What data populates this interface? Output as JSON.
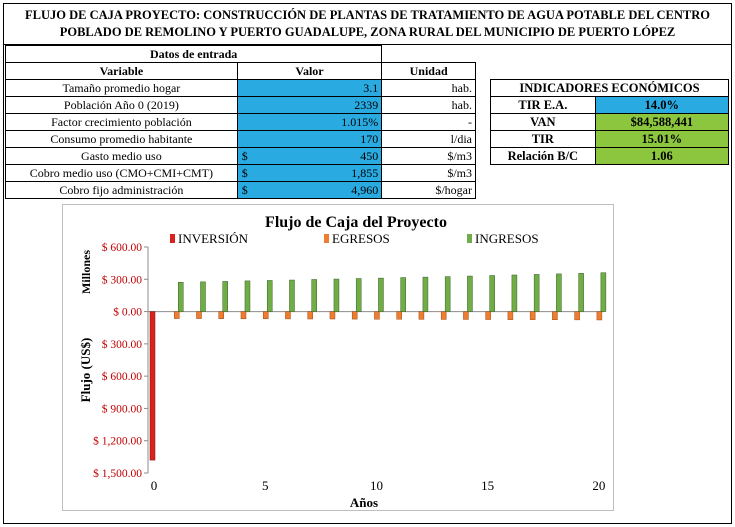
{
  "header": {
    "title_line1": "FLUJO DE CAJA PROYECTO: CONSTRUCCIÓN DE PLANTAS DE TRATAMIENTO DE AGUA POTABLE DEL CENTRO",
    "title_line2": "POBLADO DE REMOLINO Y PUERTO GUADALUPE, ZONA RURAL DEL MUNICIPIO DE PUERTO LÓPEZ"
  },
  "inputs": {
    "section_title": "Datos de entrada",
    "col_variable": "Variable",
    "col_valor": "Valor",
    "col_unidad": "Unidad",
    "rows": [
      {
        "variable": "Tamaño promedio hogar",
        "currency": "",
        "valor": "3.1",
        "unidad": "hab."
      },
      {
        "variable": "Población Año 0 (2019)",
        "currency": "",
        "valor": "2339",
        "unidad": "hab."
      },
      {
        "variable": "Factor crecimiento población",
        "currency": "",
        "valor": "1.015%",
        "unidad": "-"
      },
      {
        "variable": "Consumo promedio habitante",
        "currency": "",
        "valor": "170",
        "unidad": "l/dia"
      },
      {
        "variable": "Gasto medio uso",
        "currency": "$",
        "valor": "450",
        "unidad": "$/m3"
      },
      {
        "variable": "Cobro medio uso (CMO+CMI+CMT)",
        "currency": "$",
        "valor": "1,855",
        "unidad": "$/m3"
      },
      {
        "variable": "Cobro fijo administración",
        "currency": "$",
        "valor": "4,960",
        "unidad": "$/hogar"
      }
    ]
  },
  "indicators": {
    "title": "INDICADORES ECONÓMICOS",
    "rows": [
      {
        "label": "TIR E.A.",
        "value": "14.0%",
        "color": "#29abe2"
      },
      {
        "label": "VAN",
        "value": "$84,588,441",
        "color": "#8cc63f"
      },
      {
        "label": "TIR",
        "value": "15.01%",
        "color": "#8cc63f"
      },
      {
        "label": "Relación B/C",
        "value": "1.06",
        "color": "#8cc63f"
      }
    ]
  },
  "chart_data": {
    "type": "bar",
    "title": "Flujo de Caja del Proyecto",
    "xlabel": "Años",
    "ylabel": "Flujo  (US$)",
    "units_label": "Millones",
    "ylim": [
      -1500,
      600
    ],
    "yticks": [
      600,
      300,
      0,
      -300,
      -600,
      -900,
      -1200,
      -1500
    ],
    "ytick_labels": [
      "$ 600.00",
      "$ 300.00",
      "$ 0.00",
      "$ 300.00",
      "$ 600.00",
      "$ 900.00",
      "$ 1,200.00",
      "$ 1,500.00"
    ],
    "xticks": [
      0,
      5,
      10,
      15,
      20
    ],
    "x": [
      0,
      1,
      2,
      3,
      4,
      5,
      6,
      7,
      8,
      9,
      10,
      11,
      12,
      13,
      14,
      15,
      16,
      17,
      18,
      19,
      20
    ],
    "legend_position": "top",
    "grid": false,
    "series": [
      {
        "name": "INVERSIÓN",
        "color": "#d9211e",
        "values": [
          -1380,
          0,
          0,
          0,
          0,
          0,
          0,
          0,
          0,
          0,
          0,
          0,
          0,
          0,
          0,
          0,
          0,
          0,
          0,
          0,
          0
        ]
      },
      {
        "name": "EGRESOS",
        "color": "#ef7d31",
        "values": [
          0,
          -65,
          -65,
          -66,
          -67,
          -67,
          -68,
          -69,
          -69,
          -70,
          -71,
          -71,
          -72,
          -73,
          -73,
          -74,
          -75,
          -75,
          -76,
          -77,
          -78
        ]
      },
      {
        "name": "INGRESOS",
        "color": "#70ad47",
        "values": [
          0,
          272,
          276,
          280,
          285,
          289,
          293,
          298,
          302,
          307,
          311,
          316,
          320,
          325,
          330,
          335,
          340,
          345,
          350,
          355,
          361
        ]
      }
    ]
  }
}
